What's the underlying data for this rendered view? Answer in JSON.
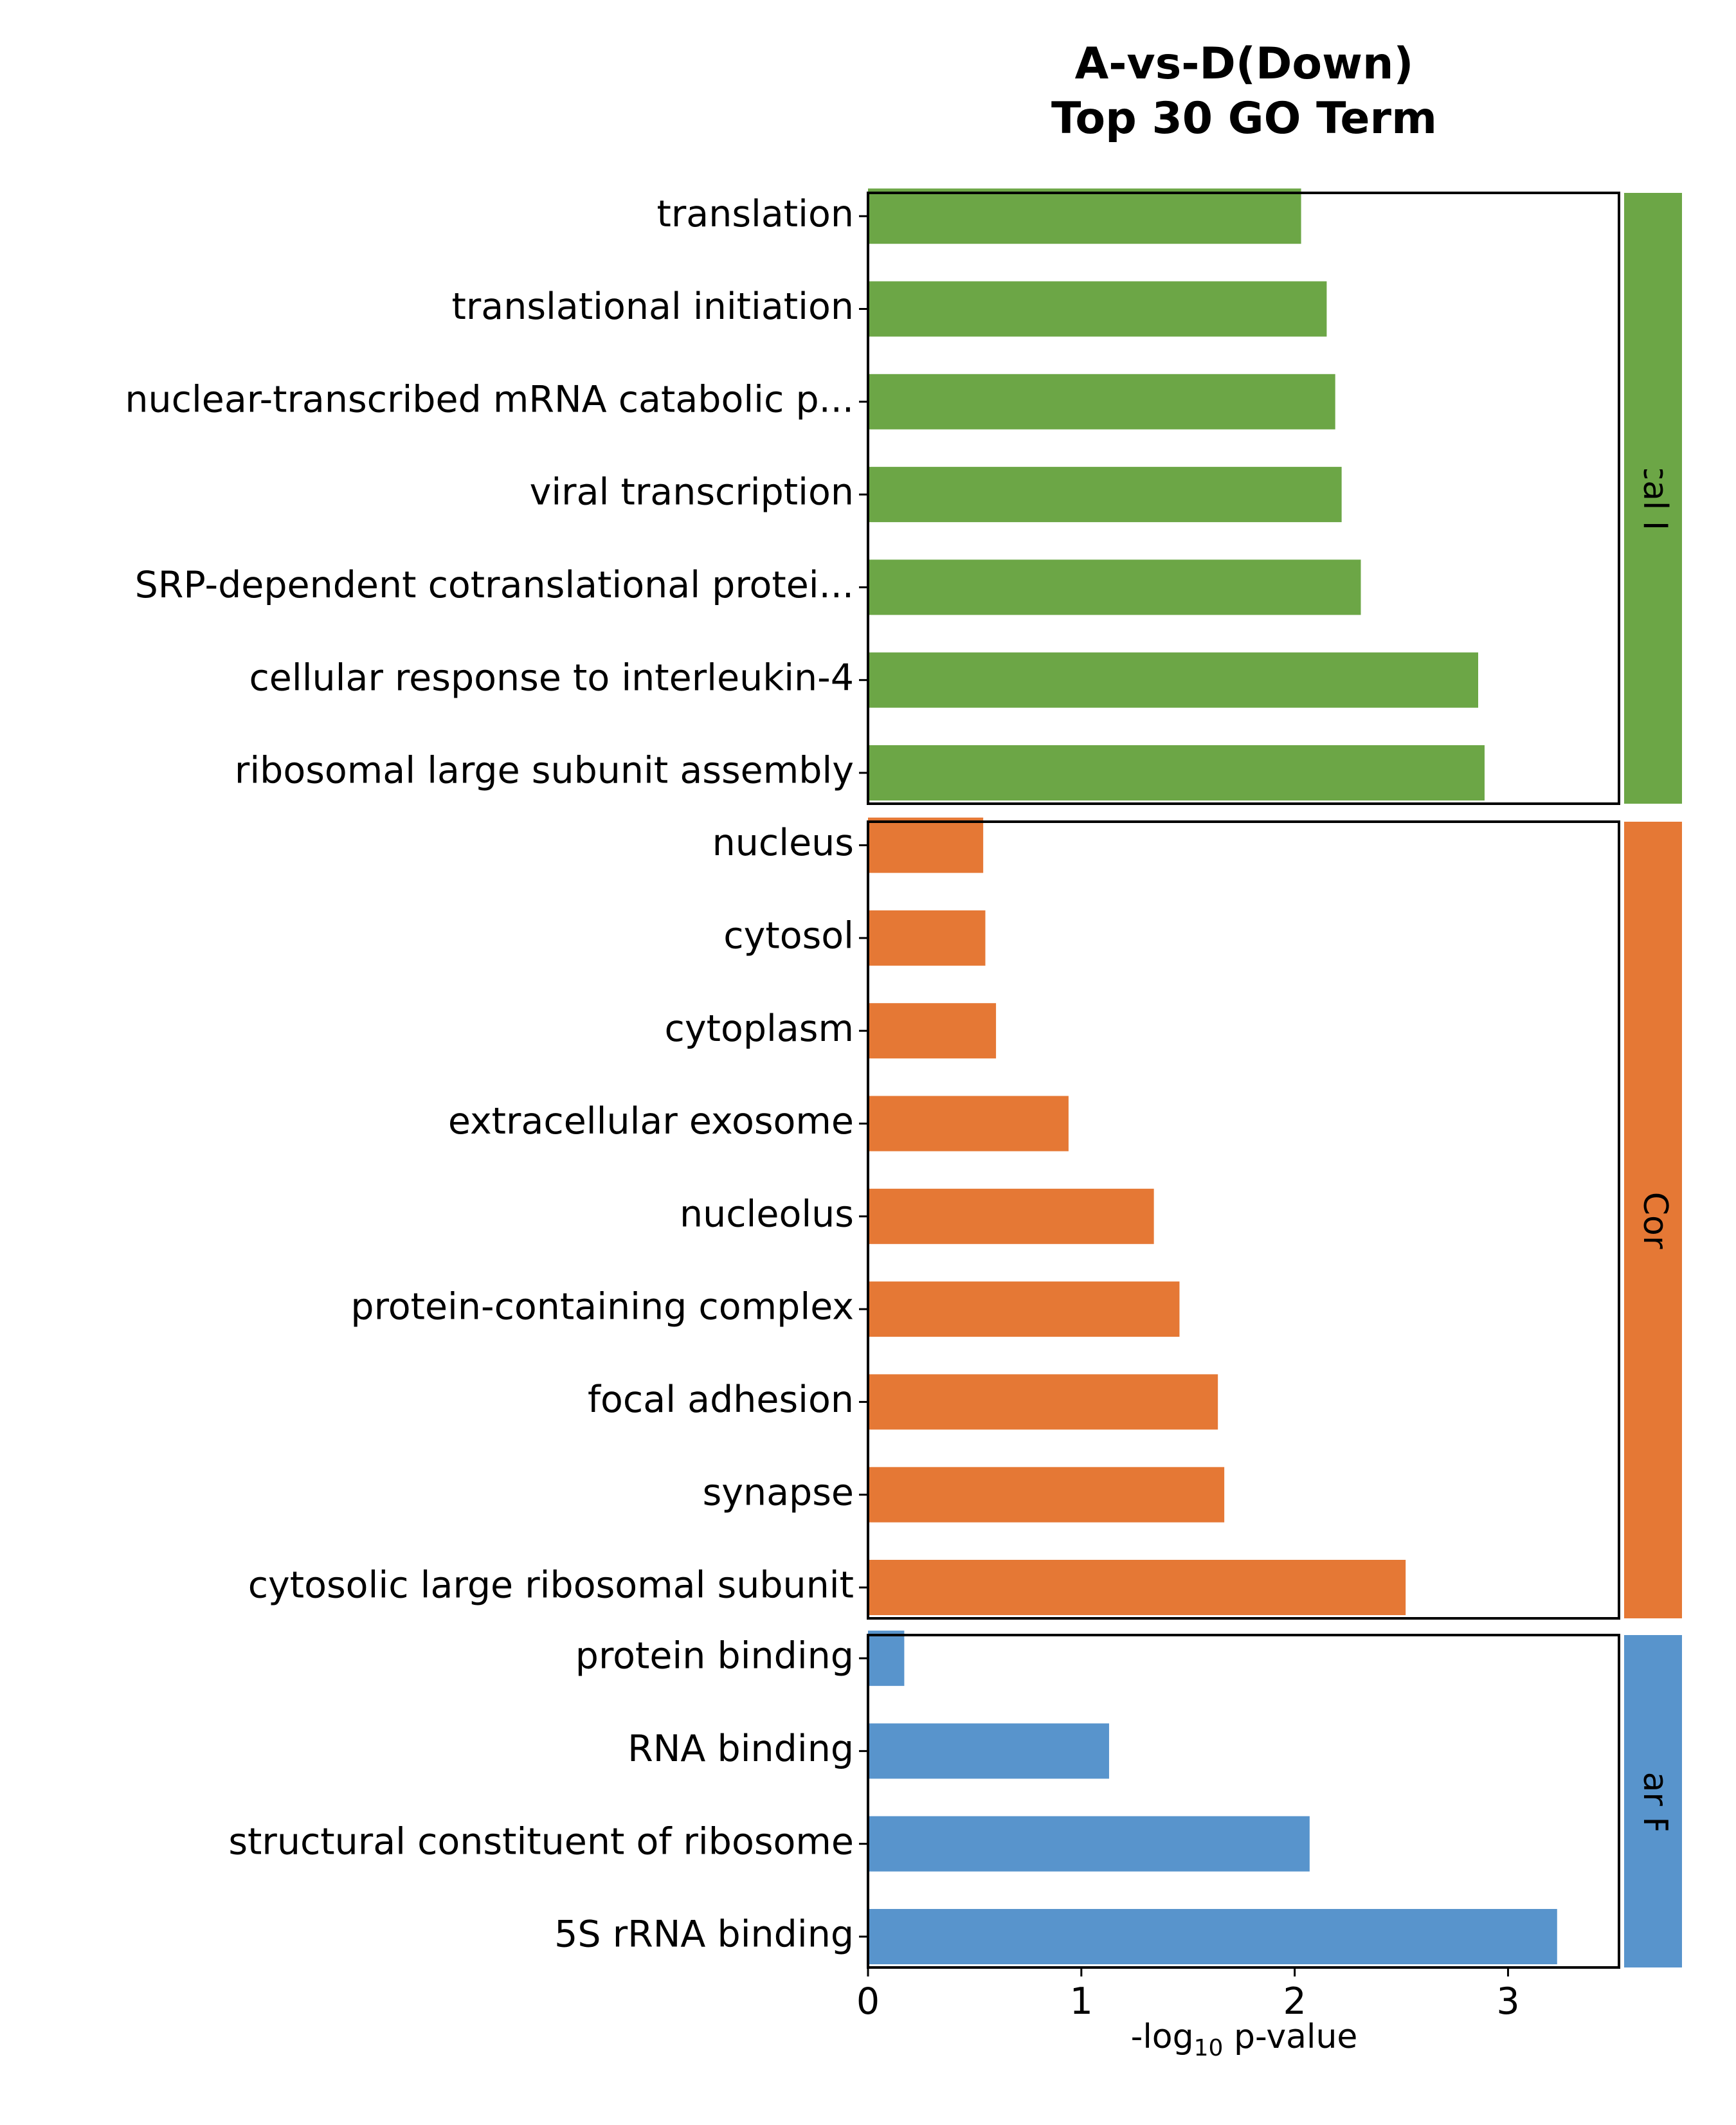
{
  "chart_data": {
    "type": "bar",
    "orientation": "horizontal",
    "title": [
      "A-vs-D(Down)",
      "Top 30 GO Term"
    ],
    "xlabel": {
      "prefix": "-log",
      "subscript": "10",
      "suffix": " p-value"
    },
    "xlim": [
      0,
      3.52
    ],
    "xticks": [
      "0",
      "1",
      "2",
      "3"
    ],
    "grid": false,
    "panels": [
      {
        "name": "Biological Process",
        "color": "#6ca646",
        "categories": [
          "translation",
          "translational initiation",
          "nuclear-transcribed mRNA catabolic p...",
          "viral transcription",
          "SRP-dependent cotranslational protei...",
          "cellular response to interleukin-4",
          "ribosomal large subunit assembly"
        ],
        "values": [
          2.03,
          2.15,
          2.19,
          2.22,
          2.31,
          2.86,
          2.89
        ]
      },
      {
        "name": "Cellular Component",
        "color": "#e57835",
        "categories": [
          "nucleus",
          "cytosol",
          "cytoplasm",
          "extracellular exosome",
          "nucleolus",
          "protein-containing complex",
          "focal adhesion",
          "synapse",
          "cytosolic large ribosomal subunit"
        ],
        "values": [
          0.54,
          0.55,
          0.6,
          0.94,
          1.34,
          1.46,
          1.64,
          1.67,
          2.52
        ]
      },
      {
        "name": "Molecular Function",
        "color": "#5894cc",
        "categories": [
          "protein binding",
          "RNA binding",
          "structural constituent of ribosome",
          "5S rRNA binding"
        ],
        "values": [
          0.17,
          1.13,
          2.07,
          3.23
        ]
      }
    ]
  }
}
